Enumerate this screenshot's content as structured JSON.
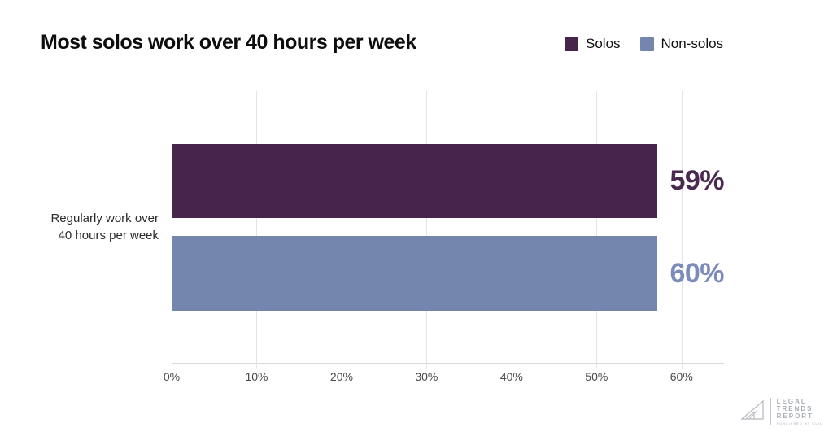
{
  "title": "Most solos work over 40 hours per week",
  "category_label": {
    "line1": "Regularly work over",
    "line2": "40 hours per week"
  },
  "chart_data": {
    "type": "bar",
    "orientation": "horizontal",
    "title": "Most solos work over 40 hours per week",
    "categories": [
      "Regularly work over 40 hours per week"
    ],
    "series": [
      {
        "name": "Solos",
        "values": [
          59
        ],
        "value_label": "59%",
        "color": "#46254b",
        "label_color": "#4a2950"
      },
      {
        "name": "Non-solos",
        "values": [
          60
        ],
        "value_label": "60%",
        "color": "#7586ae",
        "label_color": "#7b8bba"
      }
    ],
    "xticks": [
      "0%",
      "10%",
      "20%",
      "30%",
      "40%",
      "50%",
      "60%"
    ],
    "xtick_values": [
      0,
      10,
      20,
      30,
      40,
      50,
      60
    ],
    "xlim": [
      0,
      65
    ],
    "grid": true,
    "legend_position": "top-right"
  },
  "logo": {
    "line1": "LEGAL",
    "line2": "TRENDS",
    "line3": "REPORT",
    "tagline": "PUBLISHED BY CLIO"
  }
}
